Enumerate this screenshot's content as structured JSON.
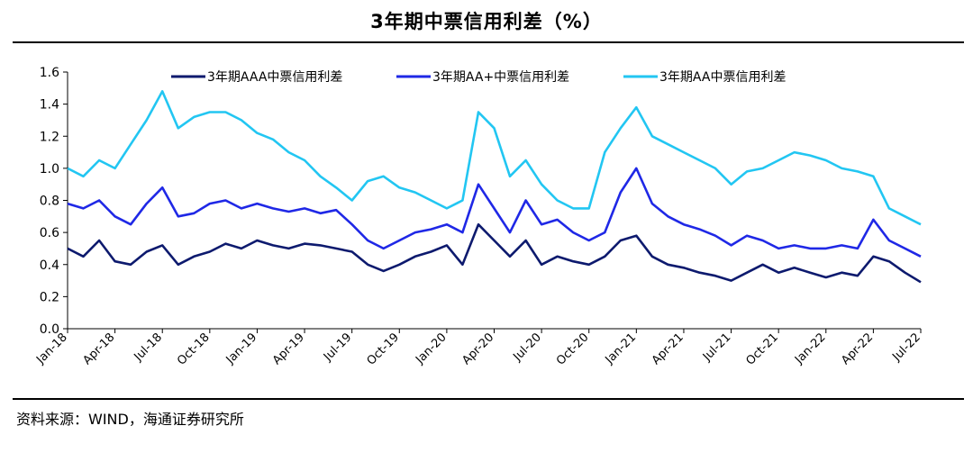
{
  "header": {
    "title": "3年期中票信用利差（%）"
  },
  "footer": {
    "source": "资料来源：WIND，海通证券研究所"
  },
  "chart_data": {
    "type": "line",
    "title": "3年期中票信用利差（%）",
    "ylim": [
      0,
      1.6
    ],
    "yticks": [
      "0.0",
      "0.2",
      "0.4",
      "0.6",
      "0.8",
      "1.0",
      "1.2",
      "1.4",
      "1.6"
    ],
    "xticks": [
      "Jan-18",
      "Apr-18",
      "Jul-18",
      "Oct-18",
      "Jan-19",
      "Apr-19",
      "Jul-19",
      "Oct-19",
      "Jan-20",
      "Apr-20",
      "Jul-20",
      "Oct-20",
      "Jan-21",
      "Apr-21",
      "Jul-21",
      "Oct-21",
      "Jan-22",
      "Apr-22",
      "Jul-22"
    ],
    "legend_position": "top",
    "grid": false,
    "x": [
      "2018-01",
      "2018-02",
      "2018-03",
      "2018-04",
      "2018-05",
      "2018-06",
      "2018-07",
      "2018-08",
      "2018-09",
      "2018-10",
      "2018-11",
      "2018-12",
      "2019-01",
      "2019-02",
      "2019-03",
      "2019-04",
      "2019-05",
      "2019-06",
      "2019-07",
      "2019-08",
      "2019-09",
      "2019-10",
      "2019-11",
      "2019-12",
      "2020-01",
      "2020-02",
      "2020-03",
      "2020-04",
      "2020-05",
      "2020-06",
      "2020-07",
      "2020-08",
      "2020-09",
      "2020-10",
      "2020-11",
      "2020-12",
      "2021-01",
      "2021-02",
      "2021-03",
      "2021-04",
      "2021-05",
      "2021-06",
      "2021-07",
      "2021-08",
      "2021-09",
      "2021-10",
      "2021-11",
      "2021-12",
      "2022-01",
      "2022-02",
      "2022-03",
      "2022-04",
      "2022-05",
      "2022-06",
      "2022-07"
    ],
    "series": [
      {
        "name": "3年期AAA中票信用利差",
        "color": "#0d1a6e",
        "values": [
          0.5,
          0.45,
          0.55,
          0.42,
          0.4,
          0.48,
          0.52,
          0.4,
          0.45,
          0.48,
          0.53,
          0.5,
          0.55,
          0.52,
          0.5,
          0.53,
          0.52,
          0.5,
          0.48,
          0.4,
          0.36,
          0.4,
          0.45,
          0.48,
          0.52,
          0.4,
          0.65,
          0.55,
          0.45,
          0.55,
          0.4,
          0.45,
          0.42,
          0.4,
          0.45,
          0.55,
          0.58,
          0.45,
          0.4,
          0.38,
          0.35,
          0.33,
          0.3,
          0.35,
          0.4,
          0.35,
          0.38,
          0.35,
          0.32,
          0.35,
          0.33,
          0.45,
          0.42,
          0.35,
          0.29
        ]
      },
      {
        "name": "3年期AA+中票信用利差",
        "color": "#1f28e6",
        "values": [
          0.78,
          0.75,
          0.8,
          0.7,
          0.65,
          0.78,
          0.88,
          0.7,
          0.72,
          0.78,
          0.8,
          0.75,
          0.78,
          0.75,
          0.73,
          0.75,
          0.72,
          0.74,
          0.65,
          0.55,
          0.5,
          0.55,
          0.6,
          0.62,
          0.65,
          0.6,
          0.9,
          0.75,
          0.6,
          0.8,
          0.65,
          0.68,
          0.6,
          0.55,
          0.6,
          0.85,
          1.0,
          0.78,
          0.7,
          0.65,
          0.62,
          0.58,
          0.52,
          0.58,
          0.55,
          0.5,
          0.52,
          0.5,
          0.5,
          0.52,
          0.5,
          0.68,
          0.55,
          0.5,
          0.45
        ]
      },
      {
        "name": "3年期AA中票信用利差",
        "color": "#22c6f2",
        "values": [
          1.0,
          0.95,
          1.05,
          1.0,
          1.15,
          1.3,
          1.48,
          1.25,
          1.32,
          1.35,
          1.35,
          1.3,
          1.22,
          1.18,
          1.1,
          1.05,
          0.95,
          0.88,
          0.8,
          0.92,
          0.95,
          0.88,
          0.85,
          0.8,
          0.75,
          0.8,
          1.35,
          1.25,
          0.95,
          1.05,
          0.9,
          0.8,
          0.75,
          0.75,
          1.1,
          1.25,
          1.38,
          1.2,
          1.15,
          1.1,
          1.05,
          1.0,
          0.9,
          0.98,
          1.0,
          1.05,
          1.1,
          1.08,
          1.05,
          1.0,
          0.98,
          0.95,
          0.75,
          0.7,
          0.65
        ]
      }
    ]
  }
}
